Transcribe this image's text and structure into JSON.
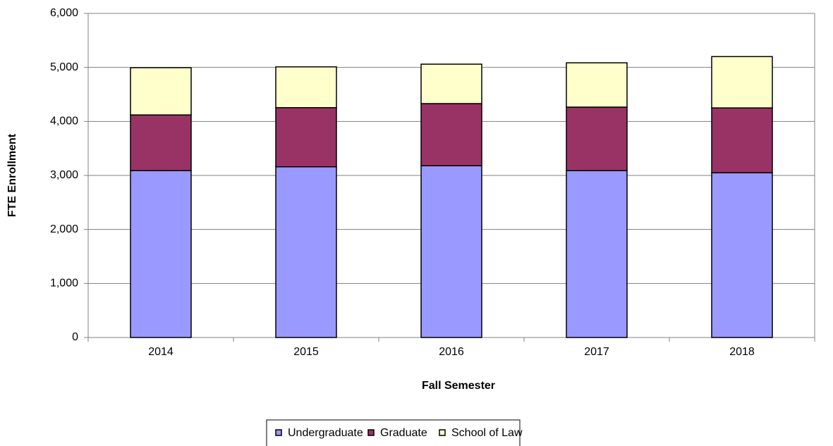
{
  "chart_data": {
    "type": "stacked_bar",
    "x_label": "Fall Semester",
    "y_label": "FTE Enrollment",
    "categories": [
      "2014",
      "2015",
      "2016",
      "2017",
      "2018"
    ],
    "series": [
      {
        "name": "Undergraduate",
        "color": "#9999ff",
        "values": [
          3090,
          3160,
          3180,
          3090,
          3050
        ]
      },
      {
        "name": "Graduate",
        "color": "#993366",
        "values": [
          1030,
          1095,
          1150,
          1175,
          1200
        ]
      },
      {
        "name": "School of Law",
        "color": "#ffffcc",
        "values": [
          875,
          755,
          730,
          820,
          950
        ]
      }
    ],
    "ylim": [
      0,
      6000
    ],
    "yticks": [
      {
        "value": 0,
        "label": "0"
      },
      {
        "value": 1000,
        "label": "1,000"
      },
      {
        "value": 2000,
        "label": "2,000"
      },
      {
        "value": 3000,
        "label": "3,000"
      },
      {
        "value": 4000,
        "label": "4,000"
      },
      {
        "value": 5000,
        "label": "5,000"
      },
      {
        "value": 6000,
        "label": "6,000"
      }
    ],
    "grid": true,
    "legend": "bottom"
  }
}
